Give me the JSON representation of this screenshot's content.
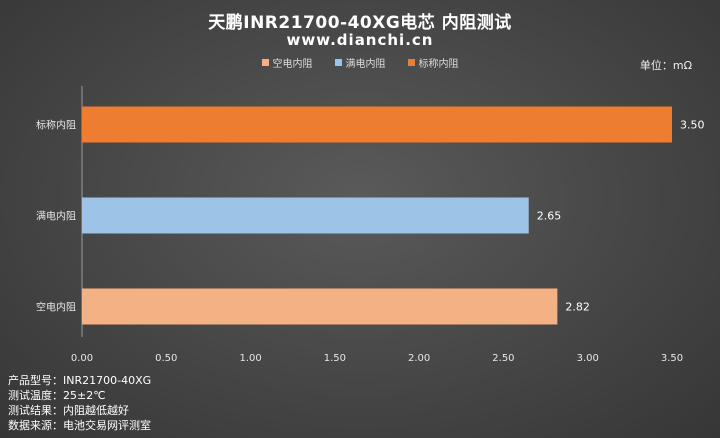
{
  "header": {
    "title": "天鹏INR21700-40XG电芯 内阻测试",
    "subtitle": "www.dianchi.cn",
    "unit": "单位：mΩ"
  },
  "info": [
    {
      "label": "产品型号：",
      "value": "INR21700-40XG"
    },
    {
      "label": "测试温度：",
      "value": "25±2℃"
    },
    {
      "label": "测试结果：",
      "value": "内阻越低越好"
    },
    {
      "label": "数据来源：",
      "value": "电池交易网评测室"
    }
  ],
  "chart_data": {
    "type": "bar",
    "orientation": "horizontal",
    "title": "天鹏INR21700-40XG电芯 内阻测试",
    "xlabel": "",
    "ylabel": "",
    "xlim": [
      0,
      3.5
    ],
    "ticks": [
      "0.00",
      "0.50",
      "1.00",
      "1.50",
      "2.00",
      "2.50",
      "3.00",
      "3.50"
    ],
    "tick_values": [
      0,
      0.5,
      1.0,
      1.5,
      2.0,
      2.5,
      3.0,
      3.5
    ],
    "grid": false,
    "legend_position": "top-center",
    "legend": [
      {
        "name": "空电内阻",
        "color": "#f4b183"
      },
      {
        "name": "满电内阻",
        "color": "#9dc3e6"
      },
      {
        "name": "标称内阻",
        "color": "#ed7d31"
      }
    ],
    "categories": [
      "标称内阻",
      "满电内阻",
      "空电内阻"
    ],
    "values": [
      3.5,
      2.65,
      2.82
    ],
    "value_labels": [
      "3.50",
      "2.65",
      "2.82"
    ],
    "colors": [
      "#ed7d31",
      "#9dc3e6",
      "#f4b183"
    ]
  }
}
